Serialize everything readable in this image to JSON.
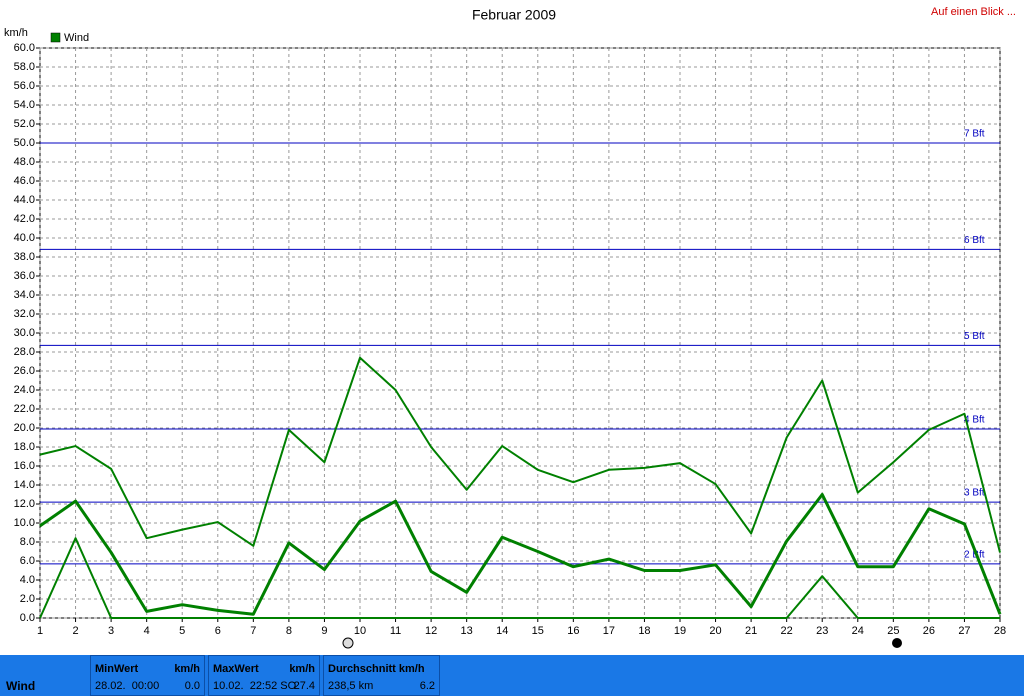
{
  "chart_data": {
    "type": "line",
    "title": "Februar 2009",
    "link": "Auf einen Blick ...",
    "y_label": "km/h",
    "legend": "Wind",
    "x": [
      1,
      2,
      3,
      4,
      5,
      6,
      7,
      8,
      9,
      10,
      11,
      12,
      13,
      14,
      15,
      16,
      17,
      18,
      19,
      20,
      21,
      22,
      23,
      24,
      25,
      26,
      27,
      28
    ],
    "xlim": [
      1,
      28
    ],
    "xticks": [
      1,
      2,
      3,
      4,
      5,
      6,
      7,
      8,
      9,
      10,
      11,
      12,
      13,
      14,
      15,
      16,
      17,
      18,
      19,
      20,
      21,
      22,
      23,
      24,
      25,
      26,
      27,
      28
    ],
    "ylim": [
      0,
      60
    ],
    "yticks": [
      {
        "value": 0,
        "label": "0.0"
      },
      {
        "value": 2,
        "label": "2.0"
      },
      {
        "value": 4,
        "label": "4.0"
      },
      {
        "value": 6,
        "label": "6.0"
      },
      {
        "value": 8,
        "label": "8.0"
      },
      {
        "value": 10,
        "label": "10.0"
      },
      {
        "value": 12,
        "label": "12.0"
      },
      {
        "value": 14,
        "label": "14.0"
      },
      {
        "value": 16,
        "label": "16.0"
      },
      {
        "value": 18,
        "label": "18.0"
      },
      {
        "value": 20,
        "label": "20.0"
      },
      {
        "value": 22,
        "label": "22.0"
      },
      {
        "value": 24,
        "label": "24.0"
      },
      {
        "value": 26,
        "label": "26.0"
      },
      {
        "value": 28,
        "label": "28.0"
      },
      {
        "value": 30,
        "label": "30.0"
      },
      {
        "value": 32,
        "label": "32.0"
      },
      {
        "value": 34,
        "label": "34.0"
      },
      {
        "value": 36,
        "label": "36.0"
      },
      {
        "value": 38,
        "label": "38.0"
      },
      {
        "value": 40,
        "label": "40.0"
      },
      {
        "value": 42,
        "label": "42.0"
      },
      {
        "value": 44,
        "label": "44.0"
      },
      {
        "value": 46,
        "label": "46.0"
      },
      {
        "value": 48,
        "label": "48.0"
      },
      {
        "value": 50,
        "label": "50.0"
      },
      {
        "value": 52,
        "label": "52.0"
      },
      {
        "value": 54,
        "label": "54.0"
      },
      {
        "value": 56,
        "label": "56.0"
      },
      {
        "value": 58,
        "label": "58.0"
      },
      {
        "value": 60,
        "label": "60.0"
      }
    ],
    "grid": true,
    "reference_lines": [
      {
        "value": 5.7,
        "label": "2 Bft"
      },
      {
        "value": 12.2,
        "label": "3 Bft"
      },
      {
        "value": 19.9,
        "label": "4 Bft"
      },
      {
        "value": 28.7,
        "label": "5 Bft"
      },
      {
        "value": 38.8,
        "label": "6 Bft"
      },
      {
        "value": 50,
        "label": "7 Bft"
      }
    ],
    "reference_color": "#0000c0",
    "series": [
      {
        "color": "#008000",
        "line_width": 2,
        "values": [
          17.2,
          18.1,
          15.7,
          8.4,
          9.3,
          10.1,
          7.6,
          19.8,
          16.4,
          27.4,
          24.0,
          18.0,
          13.5,
          18.1,
          15.6,
          14.3,
          15.6,
          15.8,
          16.3,
          14.1,
          8.9,
          19.0,
          25.0,
          13.2,
          16.4,
          19.8,
          21.5,
          6.9
        ]
      },
      {
        "color": "#008000",
        "line_width": 3,
        "values": [
          9.7,
          12.3,
          6.9,
          0.7,
          1.4,
          0.8,
          0.4,
          7.9,
          5.1,
          10.2,
          12.3,
          4.9,
          2.7,
          8.5,
          7.0,
          5.4,
          6.2,
          5.0,
          5.0,
          5.6,
          1.2,
          8.1,
          13.0,
          5.4,
          5.4,
          11.5,
          9.9,
          0.4
        ]
      },
      {
        "color": "#008000",
        "line_width": 2,
        "values": [
          0,
          8.4,
          0,
          0,
          0,
          0,
          0,
          0,
          0,
          0,
          0,
          0,
          0,
          0,
          0,
          0,
          0,
          0,
          0,
          0,
          0,
          0,
          4.4,
          0,
          0,
          0,
          0,
          0
        ]
      }
    ],
    "summary": {
      "label": "Wind",
      "boxes": [
        {
          "title": "MinWert",
          "unit": "km/h",
          "detail": "28.02.  00:00",
          "value": "0.0"
        },
        {
          "title": "MaxWert",
          "unit": "km/h",
          "detail": "10.02.  22:52 SO",
          "value": "27.4"
        },
        {
          "title": "Durchschnitt km/h",
          "detail": "238,5 km",
          "value": "6.2"
        }
      ]
    }
  }
}
